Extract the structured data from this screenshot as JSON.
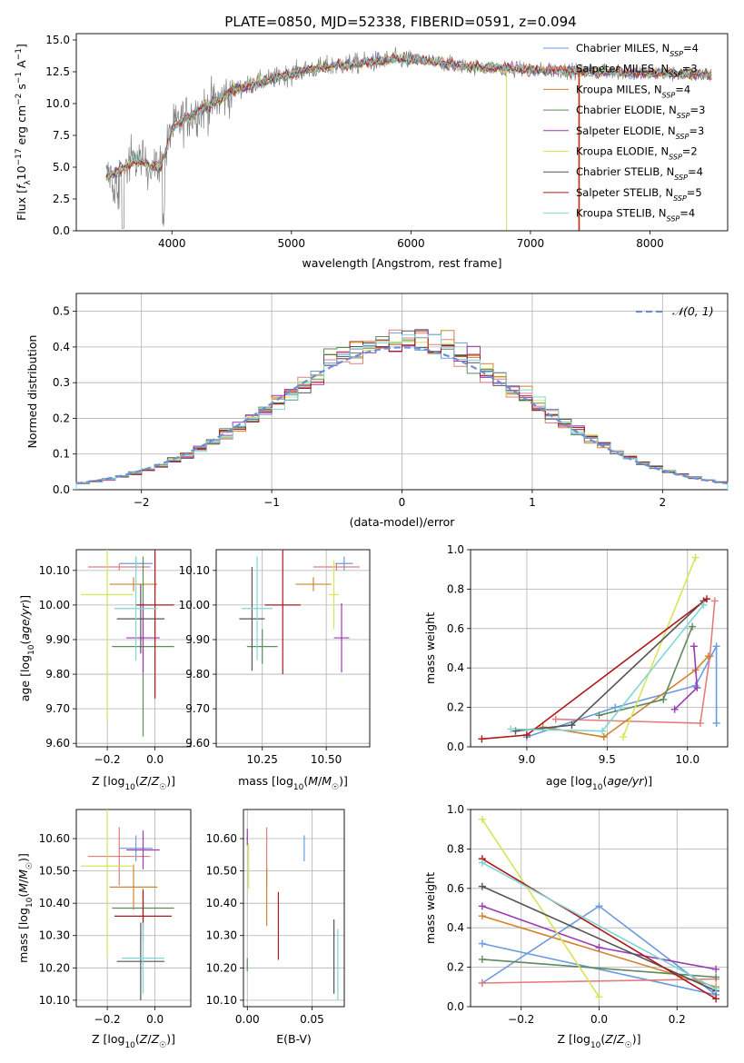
{
  "figure": {
    "title": "PLATE=0850, MJD=52338, FIBERID=0591, z=0.094"
  },
  "styles": {
    "series_colors": {
      "Chabrier MILES": "#6a9be0",
      "Salpeter MILES": "#e07e7e",
      "Kroupa MILES": "#d2832e",
      "Chabrier ELODIE": "#5e8a5e",
      "Salpeter ELODIE": "#9b3ab3",
      "Kroupa ELODIE": "#d8e35a",
      "Chabrier STELIB": "#555555",
      "Salpeter STELIB": "#b01818",
      "Kroupa STELIB": "#7fd6d6"
    },
    "observed_color": "#808080",
    "normal_color": "#6a8fd8"
  },
  "chart_data": [
    {
      "id": "spectrum",
      "type": "line",
      "xlabel": "wavelength [Angstrom, rest frame]",
      "ylabel": "Flux [f_λ 10^-17 erg cm^-2 s^-1 A^-1]",
      "xlim": [
        3200,
        8650
      ],
      "ylim": [
        0,
        15.5
      ],
      "xticks": [
        4000,
        5000,
        6000,
        7000,
        8000
      ],
      "yticks": [
        0.0,
        2.5,
        5.0,
        7.5,
        10.0,
        12.5,
        15.0
      ],
      "grid": false,
      "legend": "upper-right",
      "legend_entries": [
        {
          "name": "Chabrier MILES",
          "n_ssp": 4
        },
        {
          "name": "Salpeter MILES",
          "n_ssp": 3
        },
        {
          "name": "Kroupa MILES",
          "n_ssp": 4
        },
        {
          "name": "Chabrier ELODIE",
          "n_ssp": 3
        },
        {
          "name": "Salpeter ELODIE",
          "n_ssp": 3
        },
        {
          "name": "Kroupa ELODIE",
          "n_ssp": 2
        },
        {
          "name": "Chabrier STELIB",
          "n_ssp": 4
        },
        {
          "name": "Salpeter STELIB",
          "n_ssp": 5
        },
        {
          "name": "Kroupa STELIB",
          "n_ssp": 4
        }
      ],
      "continuum": {
        "x": [
          3450,
          3600,
          3700,
          3800,
          3900,
          3950,
          4000,
          4100,
          4200,
          4300,
          4400,
          4500,
          4700,
          4900,
          5100,
          5300,
          5500,
          5700,
          5900,
          6100,
          6300,
          6500,
          6700,
          6900,
          7100,
          7300,
          7500,
          7700,
          7900,
          8100,
          8300,
          8500
        ],
        "y": [
          4.2,
          5.0,
          5.6,
          5.2,
          5.0,
          6.2,
          8.0,
          8.8,
          9.3,
          9.8,
          10.3,
          11.0,
          11.6,
          12.1,
          12.6,
          12.9,
          13.1,
          13.3,
          13.5,
          13.4,
          13.1,
          12.9,
          12.8,
          12.7,
          12.6,
          12.6,
          12.5,
          12.5,
          12.4,
          12.4,
          12.3,
          12.3
        ]
      }
    },
    {
      "id": "residuals",
      "type": "bar",
      "xlabel": "(data-model)/error",
      "ylabel": "Normed distribution",
      "xlim": [
        -2.5,
        2.5
      ],
      "ylim": [
        0,
        0.55
      ],
      "xticks": [
        -2,
        -1,
        0,
        1,
        2
      ],
      "xtick_labels": [
        "−2",
        "−1",
        "0",
        "1",
        "2"
      ],
      "yticks": [
        0.0,
        0.1,
        0.2,
        0.3,
        0.4,
        0.5
      ],
      "grid": true,
      "legend": "upper-right",
      "legend_label": "𝒩(0, 1)",
      "bin_width": 0.1,
      "bin_start": -2.5
    },
    {
      "id": "age-vs-Z",
      "type": "scatter",
      "xlabel": "Z [log10(Z/Z☉)]",
      "ylabel": "age [log10(age/yr)]",
      "xlim": [
        -0.33,
        0.15
      ],
      "ylim": [
        9.59,
        10.16
      ],
      "xticks": [
        -0.2,
        0.0
      ],
      "xtick_labels": [
        "−0.2",
        "0.0"
      ],
      "yticks": [
        9.6,
        9.7,
        9.8,
        9.9,
        10.0,
        10.1
      ],
      "grid": true,
      "points": [
        {
          "series": "Chabrier MILES",
          "x": -0.08,
          "y": 10.12,
          "xerr": 0.07,
          "yerr": 0.02
        },
        {
          "series": "Salpeter MILES",
          "x": -0.15,
          "y": 10.11,
          "xerr": 0.13,
          "yerr": 0.01
        },
        {
          "series": "Kroupa MILES",
          "x": -0.09,
          "y": 10.06,
          "xerr": 0.1,
          "yerr": 0.02
        },
        {
          "series": "Chabrier ELODIE",
          "x": -0.05,
          "y": 9.88,
          "xerr": 0.13,
          "yerr": 0.26
        },
        {
          "series": "Salpeter ELODIE",
          "x": -0.05,
          "y": 9.905,
          "xerr": 0.07,
          "yerr": 0.1
        },
        {
          "series": "Kroupa ELODIE",
          "x": -0.2,
          "y": 10.03,
          "xerr": 0.11,
          "yerr": 0.36
        },
        {
          "series": "Chabrier STELIB",
          "x": -0.06,
          "y": 9.96,
          "xerr": 0.1,
          "yerr": 0.1
        },
        {
          "series": "Salpeter STELIB",
          "x": 0.0,
          "y": 10.0,
          "xerr": 0.08,
          "yerr": 0.27
        },
        {
          "series": "Kroupa STELIB",
          "x": -0.08,
          "y": 9.99,
          "xerr": 0.09,
          "yerr": 0.15
        }
      ]
    },
    {
      "id": "age-vs-mass",
      "type": "scatter",
      "xlabel": "mass [log10(M/M☉)]",
      "ylabel": "",
      "xlim": [
        10.07,
        10.67
      ],
      "ylim": [
        9.59,
        10.16
      ],
      "xticks": [
        10.25,
        10.5
      ],
      "xtick_labels": [
        "10.25",
        "10.50"
      ],
      "yticks": [
        9.6,
        9.7,
        9.8,
        9.9,
        10.0,
        10.1
      ],
      "grid": true,
      "points": [
        {
          "series": "Chabrier MILES",
          "x": 10.57,
          "y": 10.12,
          "xerr": 0.035,
          "yerr": 0.02
        },
        {
          "series": "Salpeter MILES",
          "x": 10.54,
          "y": 10.11,
          "xerr": 0.09,
          "yerr": 0.01
        },
        {
          "series": "Kroupa MILES",
          "x": 10.45,
          "y": 10.06,
          "xerr": 0.07,
          "yerr": 0.02
        },
        {
          "series": "Chabrier ELODIE",
          "x": 10.25,
          "y": 9.88,
          "xerr": 0.06,
          "yerr": 0.05
        },
        {
          "series": "Salpeter ELODIE",
          "x": 10.56,
          "y": 9.905,
          "xerr": 0.03,
          "yerr": 0.1
        },
        {
          "series": "Kroupa ELODIE",
          "x": 10.53,
          "y": 10.03,
          "xerr": 0.02,
          "yerr": 0.1
        },
        {
          "series": "Chabrier STELIB",
          "x": 10.21,
          "y": 9.96,
          "xerr": 0.05,
          "yerr": 0.15
        },
        {
          "series": "Salpeter STELIB",
          "x": 10.33,
          "y": 10.0,
          "xerr": 0.07,
          "yerr": 0.2
        },
        {
          "series": "Kroupa STELIB",
          "x": 10.23,
          "y": 9.99,
          "xerr": 0.06,
          "yerr": 0.15
        }
      ]
    },
    {
      "id": "weight-vs-age",
      "type": "line",
      "xlabel": "age [log10(age/yr)]",
      "ylabel": "mass weight",
      "xlim": [
        8.65,
        10.25
      ],
      "ylim": [
        0,
        1.0
      ],
      "xticks": [
        9.0,
        9.5,
        10.0
      ],
      "xtick_labels": [
        "9.0",
        "9.5",
        "10.0"
      ],
      "yticks": [
        0.0,
        0.2,
        0.4,
        0.6,
        0.8,
        1.0
      ],
      "grid": true,
      "series": [
        {
          "name": "Chabrier MILES",
          "x": [
            9.0,
            9.55,
            10.05,
            10.18,
            10.18
          ],
          "y": [
            0.05,
            0.2,
            0.31,
            0.51,
            0.12
          ]
        },
        {
          "name": "Salpeter MILES",
          "x": [
            9.18,
            10.08,
            10.14,
            10.17
          ],
          "y": [
            0.14,
            0.12,
            0.46,
            0.74
          ]
        },
        {
          "name": "Kroupa MILES",
          "x": [
            9.1,
            9.48,
            10.05,
            10.13
          ],
          "y": [
            0.1,
            0.05,
            0.39,
            0.46
          ]
        },
        {
          "name": "Chabrier ELODIE",
          "x": [
            9.45,
            9.85,
            10.03
          ],
          "y": [
            0.16,
            0.24,
            0.61
          ]
        },
        {
          "name": "Salpeter ELODIE",
          "x": [
            9.92,
            10.06,
            10.04
          ],
          "y": [
            0.19,
            0.3,
            0.51
          ]
        },
        {
          "name": "Kroupa ELODIE",
          "x": [
            9.6,
            10.05
          ],
          "y": [
            0.05,
            0.96
          ]
        },
        {
          "name": "Chabrier STELIB",
          "x": [
            8.93,
            9.28,
            10.1
          ],
          "y": [
            0.08,
            0.11,
            0.74
          ]
        },
        {
          "name": "Salpeter STELIB",
          "x": [
            8.72,
            9.0,
            10.12
          ],
          "y": [
            0.04,
            0.06,
            0.75
          ]
        },
        {
          "name": "Kroupa STELIB",
          "x": [
            8.9,
            9.47,
            10.1
          ],
          "y": [
            0.09,
            0.08,
            0.72
          ]
        }
      ]
    },
    {
      "id": "mass-vs-Z",
      "type": "scatter",
      "xlabel": "Z [log10(Z/Z☉)]",
      "ylabel": "mass [log10(M/M☉)]",
      "xlim": [
        -0.33,
        0.15
      ],
      "ylim": [
        10.08,
        10.69
      ],
      "xticks": [
        -0.2,
        0.0
      ],
      "xtick_labels": [
        "−0.2",
        "0.0"
      ],
      "yticks": [
        10.1,
        10.2,
        10.3,
        10.4,
        10.5,
        10.6
      ],
      "grid": true,
      "points": [
        {
          "series": "Chabrier MILES",
          "x": -0.08,
          "y": 10.57,
          "xerr": 0.07,
          "yerr": 0.04
        },
        {
          "series": "Salpeter MILES",
          "x": -0.15,
          "y": 10.545,
          "xerr": 0.13,
          "yerr": 0.09
        },
        {
          "series": "Kroupa MILES",
          "x": -0.09,
          "y": 10.45,
          "xerr": 0.1,
          "yerr": 0.07
        },
        {
          "series": "Chabrier ELODIE",
          "x": -0.05,
          "y": 10.385,
          "xerr": 0.13,
          "yerr": 0.06
        },
        {
          "series": "Salpeter ELODIE",
          "x": -0.05,
          "y": 10.565,
          "xerr": 0.07,
          "yerr": 0.06
        },
        {
          "series": "Kroupa ELODIE",
          "x": -0.2,
          "y": 10.515,
          "xerr": 0.11,
          "yerr": 0.28
        },
        {
          "series": "Chabrier STELIB",
          "x": -0.06,
          "y": 10.22,
          "xerr": 0.1,
          "yerr": 0.12
        },
        {
          "series": "Salpeter STELIB",
          "x": -0.05,
          "y": 10.36,
          "xerr": 0.12,
          "yerr": 0.08
        },
        {
          "series": "Kroupa STELIB",
          "x": -0.05,
          "y": 10.23,
          "xerr": 0.09,
          "yerr": 0.11
        }
      ]
    },
    {
      "id": "mass-vs-EBV",
      "type": "scatter",
      "xlabel": "E(B-V)",
      "ylabel": "",
      "xlim": [
        -0.003,
        0.075
      ],
      "ylim": [
        10.08,
        10.69
      ],
      "xticks": [
        0.0,
        0.05
      ],
      "xtick_labels": [
        "0.00",
        "0.05"
      ],
      "yticks": [
        10.1,
        10.2,
        10.3,
        10.4,
        10.5,
        10.6
      ],
      "grid": true,
      "points": [
        {
          "series": "Chabrier MILES",
          "x": 0.044,
          "y": 10.57,
          "yerr": 0.04
        },
        {
          "series": "Salpeter MILES",
          "x": 0.015,
          "y": 10.545,
          "yerr": 0.09
        },
        {
          "series": "Kroupa MILES",
          "x": 0.015,
          "y": 10.42,
          "yerr": 0.09
        },
        {
          "series": "Chabrier ELODIE",
          "x": 0.0,
          "y": 10.21,
          "yerr": 0.02
        },
        {
          "series": "Salpeter ELODIE",
          "x": 0.0,
          "y": 10.605,
          "yerr": 0.025
        },
        {
          "series": "Kroupa ELODIE",
          "x": 0.001,
          "y": 10.515,
          "yerr": 0.07
        },
        {
          "series": "Chabrier STELIB",
          "x": 0.067,
          "y": 10.235,
          "yerr": 0.115
        },
        {
          "series": "Salpeter STELIB",
          "x": 0.024,
          "y": 10.33,
          "yerr": 0.105
        },
        {
          "series": "Kroupa STELIB",
          "x": 0.07,
          "y": 10.21,
          "yerr": 0.11
        }
      ]
    },
    {
      "id": "weight-vs-Z",
      "type": "line",
      "xlabel": "Z [log10(Z/Z☉)]",
      "ylabel": "mass weight",
      "xlim": [
        -0.33,
        0.33
      ],
      "ylim": [
        0,
        1.0
      ],
      "xticks": [
        -0.2,
        0.0,
        0.2
      ],
      "xtick_labels": [
        "−0.2",
        "0.0",
        "0.2"
      ],
      "yticks": [
        0.0,
        0.2,
        0.4,
        0.6,
        0.8,
        1.0
      ],
      "grid": true,
      "series": [
        {
          "name": "Chabrier MILES",
          "x": [
            -0.3,
            0.0,
            0.3,
            -0.3
          ],
          "y": [
            0.12,
            0.51,
            0.06,
            0.32
          ]
        },
        {
          "name": "Salpeter MILES",
          "x": [
            -0.3,
            0.3
          ],
          "y": [
            0.12,
            0.14
          ]
        },
        {
          "name": "Kroupa MILES",
          "x": [
            -0.3,
            0.3
          ],
          "y": [
            0.46,
            0.1
          ]
        },
        {
          "name": "Chabrier ELODIE",
          "x": [
            -0.3,
            0.3
          ],
          "y": [
            0.24,
            0.15
          ]
        },
        {
          "name": "Salpeter ELODIE",
          "x": [
            -0.3,
            0.0,
            0.3
          ],
          "y": [
            0.51,
            0.3,
            0.19
          ]
        },
        {
          "name": "Kroupa ELODIE",
          "x": [
            -0.3,
            0.0
          ],
          "y": [
            0.95,
            0.05
          ]
        },
        {
          "name": "Chabrier STELIB",
          "x": [
            -0.3,
            0.3
          ],
          "y": [
            0.61,
            0.08
          ]
        },
        {
          "name": "Salpeter STELIB",
          "x": [
            -0.3,
            0.3
          ],
          "y": [
            0.75,
            0.04
          ]
        },
        {
          "name": "Kroupa STELIB",
          "x": [
            -0.3,
            0.3
          ],
          "y": [
            0.73,
            0.09
          ]
        }
      ]
    }
  ]
}
